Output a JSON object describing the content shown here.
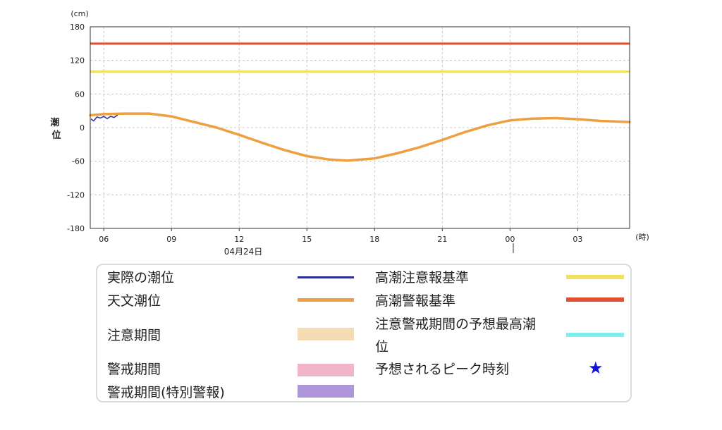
{
  "chart_data": {
    "type": "line",
    "y_unit": "(cm)",
    "x_unit": "(時)",
    "ylabel": "潮位",
    "ylim": [
      -180,
      180
    ],
    "y_ticks": [
      180,
      120,
      60,
      0,
      -60,
      -120,
      -180
    ],
    "x_range_hours": [
      5.4,
      29.3
    ],
    "x_ticks": [
      {
        "hour": 6,
        "label": "06"
      },
      {
        "hour": 9,
        "label": "09"
      },
      {
        "hour": 12,
        "label": "12"
      },
      {
        "hour": 15,
        "label": "15"
      },
      {
        "hour": 18,
        "label": "18"
      },
      {
        "hour": 21,
        "label": "21"
      },
      {
        "hour": 24,
        "label": "00"
      },
      {
        "hour": 27,
        "label": "03"
      }
    ],
    "date_label": "04月24日",
    "date_marker_hour": 24,
    "grid": true,
    "thresholds": [
      {
        "name": "高潮注意報基準",
        "value": 100,
        "color": "#f0e060"
      },
      {
        "name": "高潮警報基準",
        "value": 150,
        "color": "#e05030"
      }
    ],
    "series": [
      {
        "name": "天文潮位",
        "color": "#eea040",
        "x": [
          5.4,
          6.0,
          7.0,
          8.0,
          9.0,
          10.0,
          11.0,
          12.0,
          13.0,
          14.0,
          15.0,
          16.0,
          16.8,
          18.0,
          19.0,
          20.0,
          21.0,
          22.0,
          23.0,
          24.0,
          25.0,
          26.0,
          27.0,
          28.0,
          29.3
        ],
        "y": [
          22,
          24,
          25,
          25,
          20,
          10,
          0,
          -13,
          -27,
          -40,
          -51,
          -57,
          -59,
          -55,
          -46,
          -35,
          -22,
          -8,
          4,
          13,
          16,
          17,
          15,
          12,
          10
        ]
      },
      {
        "name": "実際の潮位",
        "color": "#2a2a9a",
        "x": [
          5.45,
          5.55,
          5.7,
          5.85,
          6.0,
          6.15,
          6.3,
          6.45,
          6.6
        ],
        "y": [
          15,
          12,
          19,
          17,
          20,
          16,
          20,
          18,
          22
        ]
      }
    ]
  },
  "legend": {
    "left": [
      {
        "label": "実際の潮位",
        "color": "#2a2a9a",
        "kind": "line"
      },
      {
        "label": "天文潮位",
        "color": "#eea040",
        "kind": "line"
      },
      {
        "label": "注意期間",
        "color": "#f5dcb4",
        "kind": "box"
      },
      {
        "label": "警戒期間",
        "color": "#f2b4c8",
        "kind": "box"
      },
      {
        "label": "警戒期間(特別警報)",
        "color": "#ae96d8",
        "kind": "box"
      }
    ],
    "right": [
      {
        "label": "高潮注意報基準",
        "color": "#f0e060",
        "kind": "line"
      },
      {
        "label": "高潮警報基準",
        "color": "#e05030",
        "kind": "line"
      },
      {
        "label_line1": "注意警戒期間の予想最高潮",
        "label_line2": "位",
        "color": "#80eef0",
        "kind": "line"
      },
      {
        "label": "予想されるピーク時刻",
        "color": "#1010dd",
        "kind": "star",
        "symbol": "★"
      }
    ]
  }
}
